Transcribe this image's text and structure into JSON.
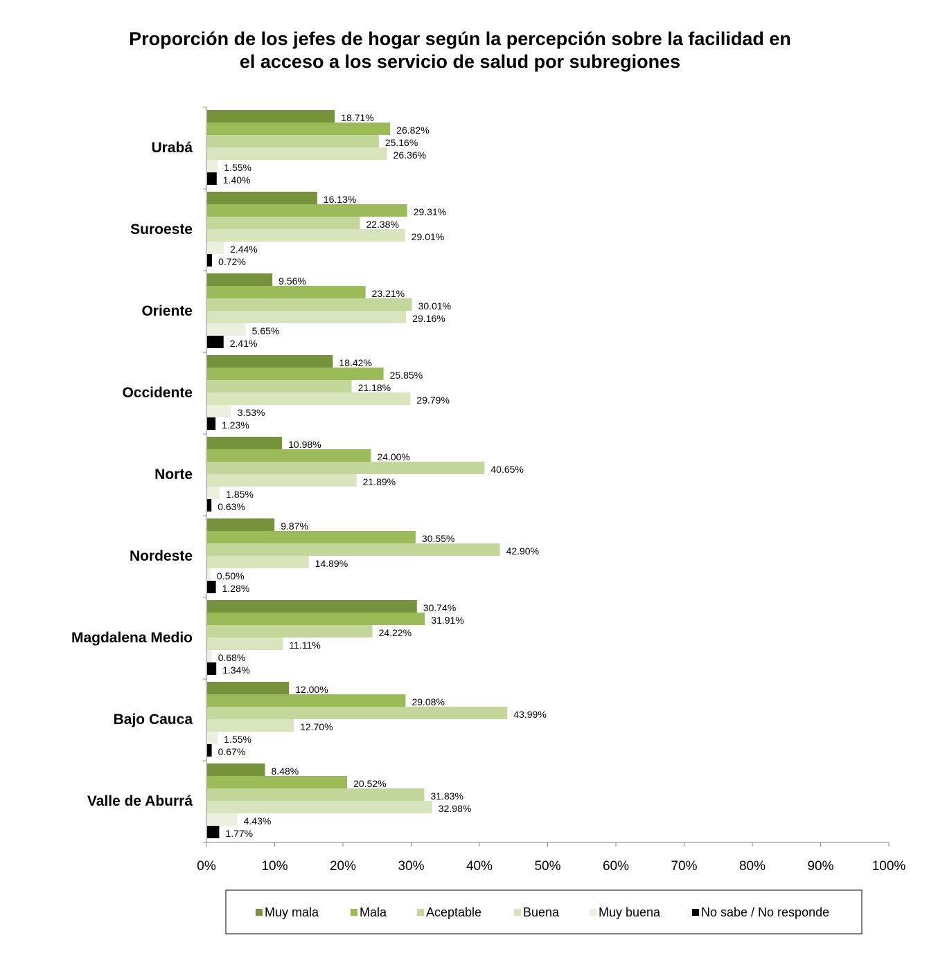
{
  "chart_data": {
    "type": "bar",
    "orientation": "horizontal",
    "title": "Proporción de los jefes de hogar según la percepción sobre la facilidad en el acceso a los servicio de salud por subregiones",
    "title_lines": [
      "Proporción de los jefes de hogar según la percepción sobre la facilidad en",
      "el acceso a los servicio de salud por subregiones"
    ],
    "xlabel": "",
    "ylabel": "",
    "xlim": [
      0,
      100
    ],
    "x_ticks": [
      "0%",
      "10%",
      "20%",
      "30%",
      "40%",
      "50%",
      "60%",
      "70%",
      "80%",
      "90%",
      "100%"
    ],
    "grid": false,
    "legend_position": "bottom",
    "categories": [
      "Urabá",
      "Suroeste",
      "Oriente",
      "Occidente",
      "Norte",
      "Nordeste",
      "Magdalena Medio",
      "Bajo Cauca",
      "Valle de Aburrá"
    ],
    "series": [
      {
        "name": "Muy mala",
        "color": "#76933c",
        "values": [
          18.71,
          16.13,
          9.56,
          18.42,
          10.98,
          9.87,
          30.74,
          12.0,
          8.48
        ],
        "labels": [
          "18.71%",
          "16.13%",
          "9.56%",
          "18.42%",
          "10.98%",
          "9.87%",
          "30.74%",
          "12.00%",
          "8.48%"
        ]
      },
      {
        "name": "Mala",
        "color": "#9bbb59",
        "values": [
          26.82,
          29.31,
          23.21,
          25.85,
          24.0,
          30.55,
          31.91,
          29.08,
          20.52
        ],
        "labels": [
          "26.82%",
          "29.31%",
          "23.21%",
          "25.85%",
          "24.00%",
          "30.55%",
          "31.91%",
          "29.08%",
          "20.52%"
        ]
      },
      {
        "name": "Aceptable",
        "color": "#c4d79b",
        "values": [
          25.16,
          22.38,
          30.01,
          21.18,
          40.65,
          42.9,
          24.22,
          43.99,
          31.83
        ],
        "labels": [
          "25.16%",
          "22.38%",
          "30.01%",
          "21.18%",
          "40.65%",
          "42.90%",
          "24.22%",
          "43.99%",
          "31.83%"
        ]
      },
      {
        "name": "Buena",
        "color": "#d8e4bc",
        "values": [
          26.36,
          29.01,
          29.16,
          29.79,
          21.89,
          14.89,
          11.11,
          12.7,
          32.98
        ],
        "labels": [
          "26.36%",
          "29.01%",
          "29.16%",
          "29.79%",
          "21.89%",
          "14.89%",
          "11.11%",
          "12.70%",
          "32.98%"
        ]
      },
      {
        "name": "Muy buena",
        "color": "#ebf1de",
        "values": [
          1.55,
          2.44,
          5.65,
          3.53,
          1.85,
          0.5,
          0.68,
          1.55,
          4.43
        ],
        "labels": [
          "1.55%",
          "2.44%",
          "5.65%",
          "3.53%",
          "1.85%",
          "0.50%",
          "0.68%",
          "1.55%",
          "4.43%"
        ]
      },
      {
        "name": "No sabe / No responde",
        "color": "#000000",
        "values": [
          1.4,
          0.72,
          2.41,
          1.23,
          0.63,
          1.28,
          1.34,
          0.67,
          1.77
        ],
        "labels": [
          "1.40%",
          "0.72%",
          "2.41%",
          "1.23%",
          "0.63%",
          "1.28%",
          "1.34%",
          "0.67%",
          "1.77%"
        ]
      }
    ]
  }
}
